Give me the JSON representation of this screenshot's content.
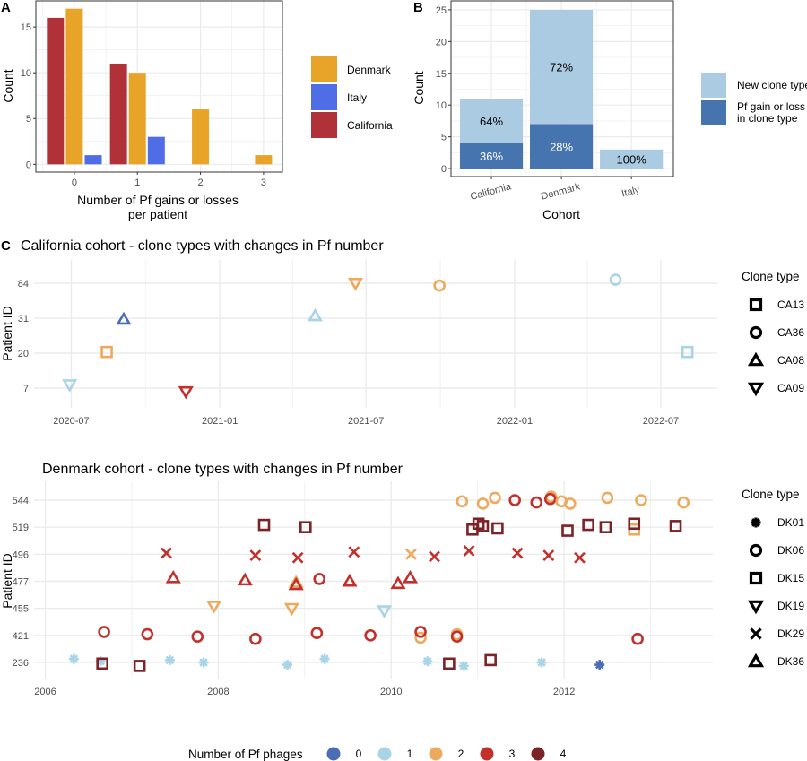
{
  "phage_legend": {
    "title": "Number of Pf phages",
    "levels": [
      "0",
      "1",
      "2",
      "3",
      "4"
    ],
    "colors": {
      "0": "#4a6db3",
      "1": "#a9d4e8",
      "2": "#eeaa5c",
      "3": "#c2302c",
      "4": "#7b2327"
    }
  },
  "chart_data": [
    {
      "panel_label": "A",
      "type": "bar",
      "categories": [
        "0",
        "1",
        "2",
        "3"
      ],
      "series": [
        {
          "name": "California",
          "values": [
            16,
            11,
            0,
            0
          ],
          "color": "#b03238"
        },
        {
          "name": "Denmark",
          "values": [
            17,
            10,
            6,
            1
          ],
          "color": "#e8a428"
        },
        {
          "name": "Italy",
          "values": [
            1,
            3,
            0,
            0
          ],
          "color": "#4f6de6"
        }
      ],
      "legend_order": [
        "Denmark",
        "Italy",
        "California"
      ],
      "legend": "right",
      "xlabel": [
        "Number of Pf gains or losses",
        "per patient"
      ],
      "ylabel": "Count",
      "yticks": [
        0,
        5,
        10,
        15
      ],
      "ylim": [
        -0.85,
        17.85
      ],
      "grid": true
    },
    {
      "panel_label": "B",
      "type": "bar",
      "stacked": true,
      "categories": [
        "California",
        "Denmark",
        "Italy"
      ],
      "series": [
        {
          "name": "Pf gain or loss in clone type",
          "legend_lines": [
            "Pf gain or loss",
            " in clone type"
          ],
          "values": [
            4,
            7,
            0
          ],
          "labels": [
            "36%",
            "28%",
            ""
          ],
          "color": "#4674ae",
          "label_color": "#ffffff"
        },
        {
          "name": "New clone type",
          "legend_lines": [
            "New clone type"
          ],
          "values": [
            7,
            18,
            3
          ],
          "labels": [
            "64%",
            "72%",
            "100%"
          ],
          "color": "#abcbe3",
          "label_color": "#000000"
        }
      ],
      "legend": "right",
      "xlabel": "Cohort",
      "ylabel": "Count",
      "yticks": [
        0,
        5,
        10,
        15,
        20,
        25
      ],
      "ylim": [
        -1.26,
        26.4
      ],
      "grid": true
    },
    {
      "panel_label": "C",
      "type": "scatter",
      "title": "California cohort - clone types with changes in Pf number",
      "ylabel": "Patient ID",
      "x_type": "date",
      "xlim": [
        "2020-05-16",
        "2022-09-09"
      ],
      "xticks": [
        "2020-07-01",
        "2021-01-01",
        "2021-07-01",
        "2022-01-01",
        "2022-07-01"
      ],
      "xtick_labels": [
        "2020-07",
        "2021-01",
        "2021-07",
        "2022-01",
        "2022-07"
      ],
      "y_categories": [
        "7",
        "20",
        "31",
        "84"
      ],
      "shape_legend_title": "Clone type",
      "clone_types": [
        {
          "name": "CA13",
          "shape": "square"
        },
        {
          "name": "CA36",
          "shape": "circle"
        },
        {
          "name": "CA08",
          "shape": "triangle-up"
        },
        {
          "name": "CA09",
          "shape": "triangle-down"
        }
      ],
      "points": [
        {
          "x": "2020-06-29",
          "patient": "7",
          "clone": "CA09",
          "pf": 1
        },
        {
          "x": "2020-08-14",
          "patient": "20",
          "clone": "CA13",
          "pf": 2
        },
        {
          "x": "2020-09-04",
          "patient": "31",
          "clone": "CA08",
          "pf": 0
        },
        {
          "x": "2020-11-20",
          "patient": "7",
          "clone": "CA09",
          "pf": 3
        },
        {
          "x": "2021-04-29",
          "patient": "31",
          "clone": "CA08",
          "pf": 1
        },
        {
          "x": "2021-06-18",
          "patient": "84",
          "clone": "CA09",
          "pf": 2
        },
        {
          "x": "2021-09-30",
          "patient": "84",
          "clone": "CA36",
          "pf": 2
        },
        {
          "x": "2022-05-06",
          "patient": "84",
          "clone": "CA36",
          "pf": 1
        },
        {
          "x": "2022-08-03",
          "patient": "20",
          "clone": "CA13",
          "pf": 1
        }
      ]
    },
    {
      "type": "scatter",
      "title": "Denmark cohort - clone types with changes in Pf number",
      "ylabel": "Patient ID",
      "x_type": "year",
      "xlim": [
        2005.87,
        2013.72
      ],
      "xticks": [
        2006,
        2008,
        2010,
        2012
      ],
      "xtick_labels": [
        "2006",
        "2008",
        "2010",
        "2012"
      ],
      "y_categories": [
        "236",
        "421",
        "455",
        "477",
        "496",
        "519",
        "544"
      ],
      "shape_legend_title": "Clone type",
      "clone_types": [
        {
          "name": "DK01",
          "shape": "asterisk"
        },
        {
          "name": "DK06",
          "shape": "circle"
        },
        {
          "name": "DK15",
          "shape": "square"
        },
        {
          "name": "DK19",
          "shape": "triangle-down"
        },
        {
          "name": "DK29",
          "shape": "x"
        },
        {
          "name": "DK36",
          "shape": "triangle-up"
        }
      ],
      "points": [
        {
          "x": 2006.33,
          "patient": "236",
          "clone": "DK01",
          "pf": 1
        },
        {
          "x": 2006.64,
          "patient": "236",
          "clone": "DK01",
          "pf": 1
        },
        {
          "x": 2006.66,
          "patient": "236",
          "clone": "DK15",
          "pf": 4
        },
        {
          "x": 2007.09,
          "patient": "236",
          "clone": "DK15",
          "pf": 4
        },
        {
          "x": 2007.44,
          "patient": "236",
          "clone": "DK01",
          "pf": 1
        },
        {
          "x": 2007.83,
          "patient": "236",
          "clone": "DK01",
          "pf": 1
        },
        {
          "x": 2008.8,
          "patient": "236",
          "clone": "DK01",
          "pf": 1
        },
        {
          "x": 2009.23,
          "patient": "236",
          "clone": "DK01",
          "pf": 1
        },
        {
          "x": 2010.42,
          "patient": "236",
          "clone": "DK01",
          "pf": 1
        },
        {
          "x": 2010.67,
          "patient": "236",
          "clone": "DK15",
          "pf": 4
        },
        {
          "x": 2010.84,
          "patient": "236",
          "clone": "DK01",
          "pf": 1
        },
        {
          "x": 2011.15,
          "patient": "236",
          "clone": "DK15",
          "pf": 4
        },
        {
          "x": 2011.74,
          "patient": "236",
          "clone": "DK01",
          "pf": 1
        },
        {
          "x": 2012.41,
          "patient": "236",
          "clone": "DK01",
          "pf": 0
        },
        {
          "x": 2006.68,
          "patient": "421",
          "clone": "DK06",
          "pf": 3
        },
        {
          "x": 2007.18,
          "patient": "421",
          "clone": "DK06",
          "pf": 3
        },
        {
          "x": 2007.76,
          "patient": "421",
          "clone": "DK06",
          "pf": 3
        },
        {
          "x": 2008.43,
          "patient": "421",
          "clone": "DK06",
          "pf": 3
        },
        {
          "x": 2009.14,
          "patient": "421",
          "clone": "DK06",
          "pf": 3
        },
        {
          "x": 2009.76,
          "patient": "421",
          "clone": "DK06",
          "pf": 3
        },
        {
          "x": 2010.34,
          "patient": "421",
          "clone": "DK06",
          "pf": 2
        },
        {
          "x": 2010.34,
          "patient": "421",
          "clone": "DK06",
          "pf": 3
        },
        {
          "x": 2010.76,
          "patient": "421",
          "clone": "DK06",
          "pf": 2
        },
        {
          "x": 2010.76,
          "patient": "421",
          "clone": "DK06",
          "pf": 3
        },
        {
          "x": 2012.85,
          "patient": "421",
          "clone": "DK06",
          "pf": 3
        },
        {
          "x": 2007.95,
          "patient": "455",
          "clone": "DK19",
          "pf": 2
        },
        {
          "x": 2008.85,
          "patient": "455",
          "clone": "DK19",
          "pf": 2
        },
        {
          "x": 2009.92,
          "patient": "455",
          "clone": "DK19",
          "pf": 1
        },
        {
          "x": 2007.48,
          "patient": "477",
          "clone": "DK36",
          "pf": 3
        },
        {
          "x": 2008.31,
          "patient": "477",
          "clone": "DK36",
          "pf": 3
        },
        {
          "x": 2008.9,
          "patient": "477",
          "clone": "DK36",
          "pf": 2
        },
        {
          "x": 2008.9,
          "patient": "477",
          "clone": "DK36",
          "pf": 3
        },
        {
          "x": 2009.17,
          "patient": "477",
          "clone": "DK06",
          "pf": 3
        },
        {
          "x": 2009.52,
          "patient": "477",
          "clone": "DK36",
          "pf": 3
        },
        {
          "x": 2010.08,
          "patient": "477",
          "clone": "DK36",
          "pf": 3
        },
        {
          "x": 2010.22,
          "patient": "477",
          "clone": "DK36",
          "pf": 3
        },
        {
          "x": 2007.4,
          "patient": "496",
          "clone": "DK29",
          "pf": 3
        },
        {
          "x": 2008.43,
          "patient": "496",
          "clone": "DK29",
          "pf": 3
        },
        {
          "x": 2008.92,
          "patient": "496",
          "clone": "DK29",
          "pf": 3
        },
        {
          "x": 2009.57,
          "patient": "496",
          "clone": "DK29",
          "pf": 3
        },
        {
          "x": 2010.23,
          "patient": "496",
          "clone": "DK29",
          "pf": 2
        },
        {
          "x": 2010.5,
          "patient": "496",
          "clone": "DK29",
          "pf": 3
        },
        {
          "x": 2010.9,
          "patient": "496",
          "clone": "DK29",
          "pf": 3
        },
        {
          "x": 2011.46,
          "patient": "496",
          "clone": "DK29",
          "pf": 3
        },
        {
          "x": 2011.82,
          "patient": "496",
          "clone": "DK29",
          "pf": 3
        },
        {
          "x": 2012.18,
          "patient": "496",
          "clone": "DK29",
          "pf": 3
        },
        {
          "x": 2008.53,
          "patient": "519",
          "clone": "DK15",
          "pf": 4
        },
        {
          "x": 2009.01,
          "patient": "519",
          "clone": "DK15",
          "pf": 4
        },
        {
          "x": 2010.94,
          "patient": "519",
          "clone": "DK15",
          "pf": 4
        },
        {
          "x": 2011.01,
          "patient": "519",
          "clone": "DK15",
          "pf": 4
        },
        {
          "x": 2011.06,
          "patient": "519",
          "clone": "DK15",
          "pf": 4
        },
        {
          "x": 2011.23,
          "patient": "519",
          "clone": "DK15",
          "pf": 4
        },
        {
          "x": 2012.04,
          "patient": "519",
          "clone": "DK15",
          "pf": 4
        },
        {
          "x": 2012.28,
          "patient": "519",
          "clone": "DK15",
          "pf": 4
        },
        {
          "x": 2012.48,
          "patient": "519",
          "clone": "DK15",
          "pf": 4
        },
        {
          "x": 2012.81,
          "patient": "519",
          "clone": "DK15",
          "pf": 2
        },
        {
          "x": 2012.81,
          "patient": "519",
          "clone": "DK15",
          "pf": 4
        },
        {
          "x": 2013.29,
          "patient": "519",
          "clone": "DK15",
          "pf": 4
        },
        {
          "x": 2010.82,
          "patient": "544",
          "clone": "DK06",
          "pf": 2
        },
        {
          "x": 2011.06,
          "patient": "544",
          "clone": "DK06",
          "pf": 2
        },
        {
          "x": 2011.2,
          "patient": "544",
          "clone": "DK06",
          "pf": 2
        },
        {
          "x": 2011.43,
          "patient": "544",
          "clone": "DK06",
          "pf": 3
        },
        {
          "x": 2011.68,
          "patient": "544",
          "clone": "DK06",
          "pf": 3
        },
        {
          "x": 2011.85,
          "patient": "544",
          "clone": "DK06",
          "pf": 2
        },
        {
          "x": 2011.84,
          "patient": "544",
          "clone": "DK06",
          "pf": 3
        },
        {
          "x": 2011.97,
          "patient": "544",
          "clone": "DK06",
          "pf": 2
        },
        {
          "x": 2012.07,
          "patient": "544",
          "clone": "DK06",
          "pf": 2
        },
        {
          "x": 2012.5,
          "patient": "544",
          "clone": "DK06",
          "pf": 2
        },
        {
          "x": 2012.89,
          "patient": "544",
          "clone": "DK06",
          "pf": 2
        },
        {
          "x": 2013.38,
          "patient": "544",
          "clone": "DK06",
          "pf": 2
        }
      ]
    }
  ]
}
